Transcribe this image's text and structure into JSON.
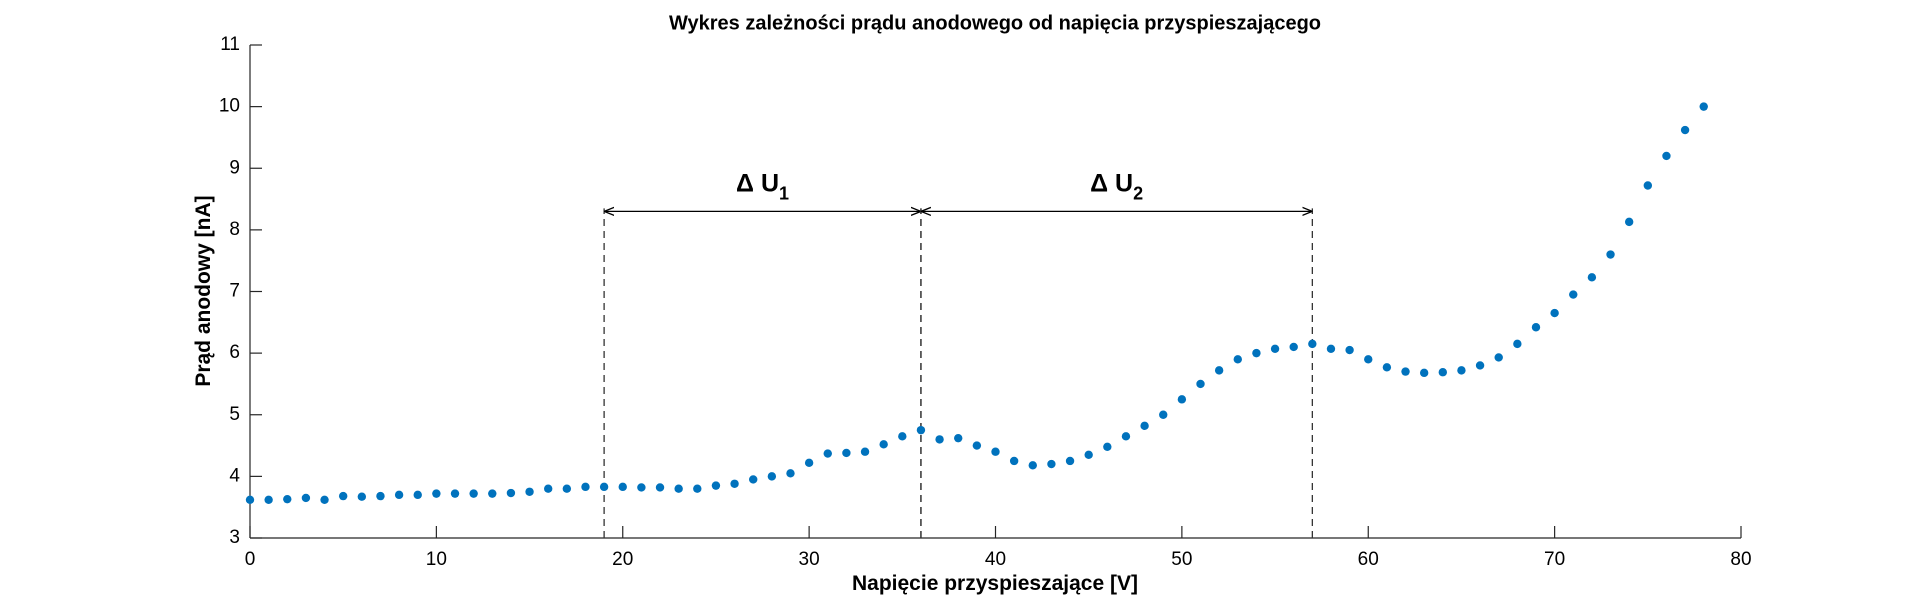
{
  "chart_data": {
    "type": "scatter",
    "title": "Wykres zależności prądu anodowego od napięcia przyspieszającego",
    "xlabel": "Napięcie przyspieszające [V]",
    "ylabel": "Prąd anodowy [nA]",
    "xlim": [
      0,
      80
    ],
    "xticks": [
      0,
      10,
      20,
      30,
      40,
      50,
      60,
      70,
      80
    ],
    "ylim": [
      3,
      11
    ],
    "yticks": [
      3,
      4,
      5,
      6,
      7,
      8,
      9,
      10,
      11
    ],
    "series": [
      {
        "color": "#0072bd",
        "x": [
          0,
          1,
          2,
          3,
          4,
          5,
          6,
          7,
          8,
          9,
          10,
          11,
          12,
          13,
          14,
          15,
          16,
          17,
          18,
          19,
          20,
          21,
          22,
          23,
          24,
          25,
          26,
          27,
          28,
          29,
          30,
          31,
          32,
          33,
          34,
          35,
          36,
          37,
          38,
          39,
          40,
          41,
          42,
          43,
          44,
          45,
          46,
          47,
          48,
          49,
          50,
          51,
          52,
          53,
          54,
          55,
          56,
          57,
          58,
          59,
          60,
          61,
          62,
          63,
          64,
          65,
          66,
          67,
          68,
          69,
          70,
          71,
          72,
          73,
          74,
          75,
          76,
          77,
          78
        ],
        "values": [
          3.62,
          3.62,
          3.63,
          3.65,
          3.62,
          3.68,
          3.67,
          3.68,
          3.7,
          3.7,
          3.72,
          3.72,
          3.72,
          3.72,
          3.73,
          3.75,
          3.8,
          3.8,
          3.83,
          3.83,
          3.83,
          3.82,
          3.82,
          3.8,
          3.8,
          3.85,
          3.88,
          3.95,
          4.0,
          4.05,
          4.22,
          4.37,
          4.38,
          4.4,
          4.52,
          4.65,
          4.75,
          4.6,
          4.62,
          4.5,
          4.4,
          4.25,
          4.18,
          4.2,
          4.25,
          4.35,
          4.48,
          4.65,
          4.82,
          5.0,
          5.25,
          5.5,
          5.72,
          5.9,
          6.0,
          6.07,
          6.1,
          6.15,
          6.07,
          6.05,
          5.9,
          5.77,
          5.7,
          5.68,
          5.69,
          5.72,
          5.8,
          5.93,
          6.15,
          6.42,
          6.65,
          6.95,
          7.23,
          7.6,
          8.13,
          8.72,
          9.2,
          9.62,
          10.0
        ]
      }
    ],
    "annotations": [
      {
        "x1": 19,
        "x2": 36,
        "y": 8.3,
        "label": "Δ U",
        "subscript": "1"
      },
      {
        "x1": 36,
        "x2": 57,
        "y": 8.3,
        "label": "Δ U",
        "subscript": "2"
      }
    ]
  }
}
